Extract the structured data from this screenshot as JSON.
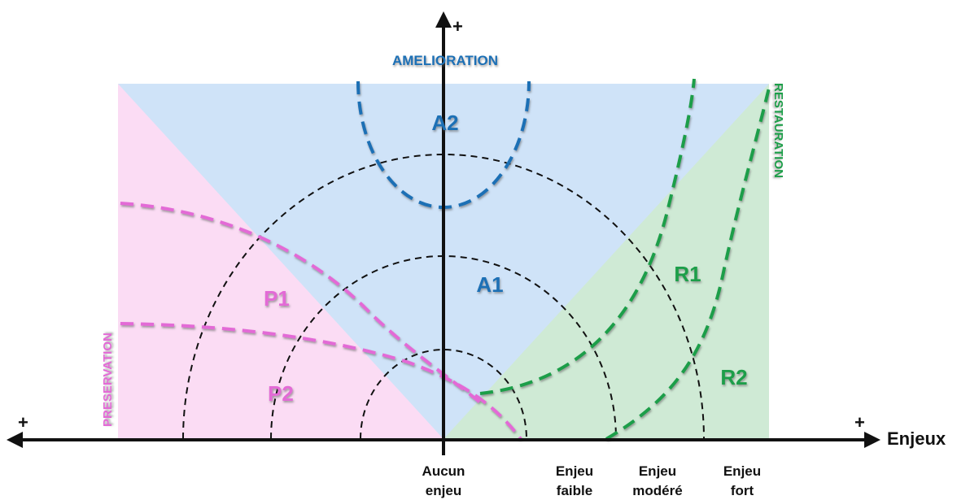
{
  "axes": {
    "x_plus_left": "+",
    "x_plus_right": "+",
    "y_plus_top": "+",
    "x_label": "Enjeux"
  },
  "directions": {
    "top": "AMELIORATION",
    "right": "RESTAURATION",
    "left": "PRESERVATION"
  },
  "zones": {
    "a2": "A2",
    "a1": "A1",
    "p1": "P1",
    "p2": "P2",
    "r1": "R1",
    "r2": "R2"
  },
  "ticks": [
    {
      "line1": "Aucun",
      "line2": "enjeu"
    },
    {
      "line1": "Enjeu",
      "line2": "faible"
    },
    {
      "line1": "Enjeu",
      "line2": "modéré"
    },
    {
      "line1": "Enjeu",
      "line2": "fort"
    }
  ],
  "colors": {
    "amelioration": "#1a6fb5",
    "restauration": "#1f9e4a",
    "preservation": "#e36ad6",
    "blue_fill": "#cfe3f8",
    "pink_fill": "#fbdcf4",
    "green_fill": "#cfead5"
  }
}
